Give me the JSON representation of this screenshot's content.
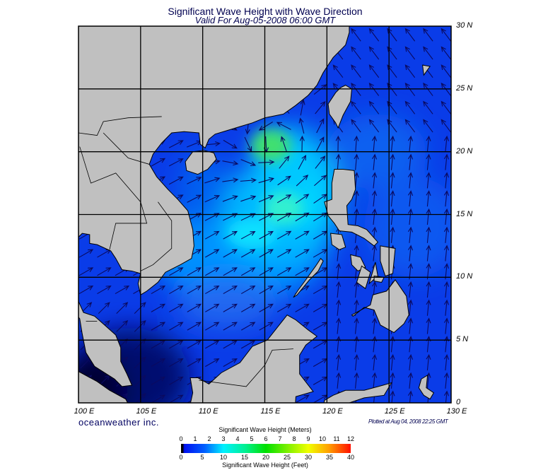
{
  "header": {
    "title": "Significant Wave Height with Wave Direction",
    "subtitle": "Valid For Aug-05-2008 06:00 GMT"
  },
  "map": {
    "region": "South China Sea",
    "lat_labels": [
      "30 N",
      "25 N",
      "20 N",
      "15 N",
      "10 N",
      "5 N",
      "0"
    ],
    "lon_labels": [
      "100 E",
      "105 E",
      "110 E",
      "115 E",
      "120 E",
      "125 E",
      "130 E"
    ],
    "land_color": "#c0c0c0",
    "ocean_base_color": "#0a3ce8",
    "arrow_color": "#0a0a60",
    "grid": true
  },
  "footer": {
    "brand": "oceanweather inc.",
    "plotted": "Plotted at Aug 04, 2008 22:25 GMT"
  },
  "colorbar": {
    "title_meters": "Significant Wave Height (Meters)",
    "title_feet": "Significant Wave Height (Feet)",
    "meters_ticks": [
      "0",
      "1",
      "2",
      "3",
      "4",
      "5",
      "6",
      "7",
      "8",
      "9",
      "10",
      "11",
      "12"
    ],
    "feet_ticks": [
      "0",
      "5",
      "10",
      "15",
      "20",
      "25",
      "30",
      "35",
      "40"
    ],
    "colors": [
      "#000000",
      "#0010f0",
      "#00f0ff",
      "#00e000",
      "#f0ff00",
      "#ffa000",
      "#ff1000"
    ]
  }
}
